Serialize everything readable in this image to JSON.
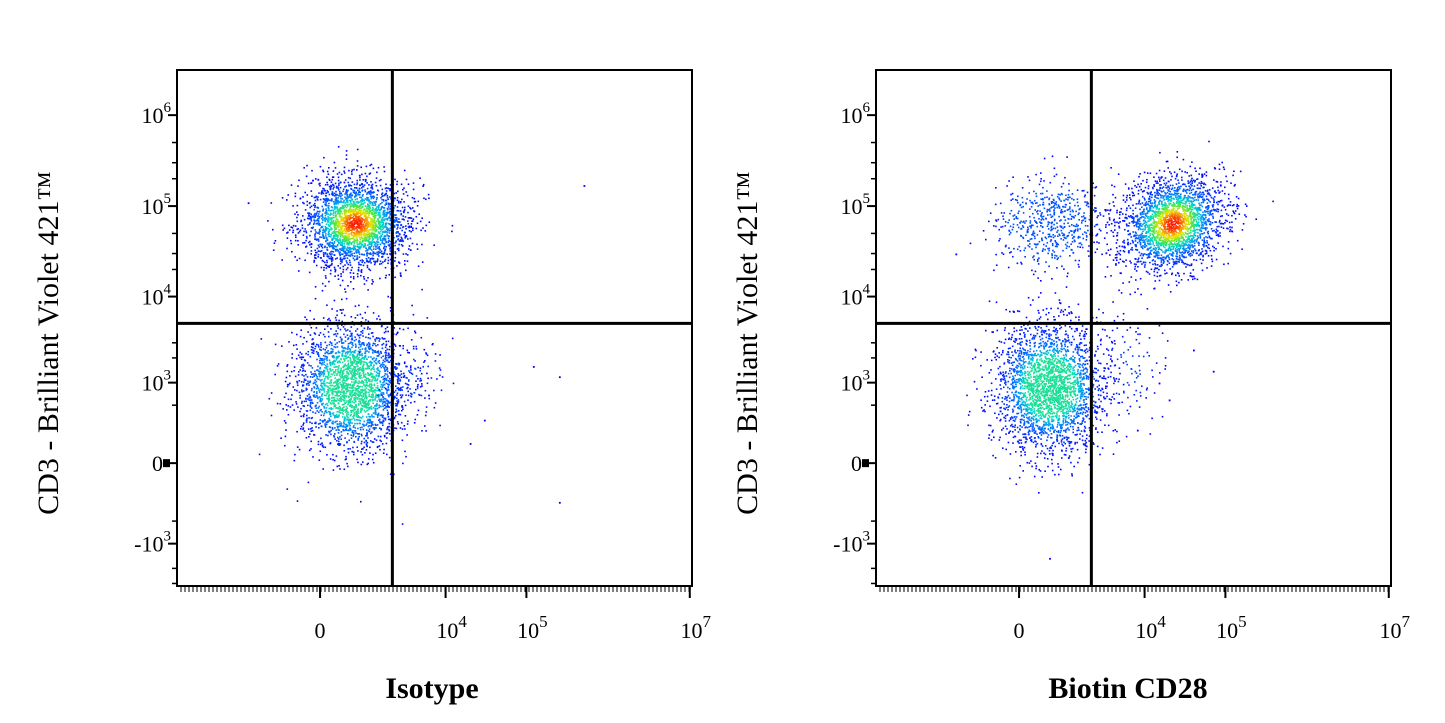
{
  "chart_data": [
    {
      "type": "scatter",
      "style": "flow cytometry density plot with quadrant gates",
      "xlabel": "Isotype",
      "ylabel": "CD3 - Brilliant Violet 421™",
      "x_scale": "biexponential",
      "y_scale": "biexponential",
      "x_ticks": [
        {
          "value": 0,
          "base": "0",
          "exp": ""
        },
        {
          "value": 10000,
          "base": "10",
          "exp": "4"
        },
        {
          "value": 100000,
          "base": "10",
          "exp": "5"
        },
        {
          "value": 10000000,
          "base": "10",
          "exp": "7"
        }
      ],
      "y_ticks": [
        {
          "value": 1000000,
          "base": "10",
          "exp": "6"
        },
        {
          "value": 100000,
          "base": "10",
          "exp": "5"
        },
        {
          "value": 10000,
          "base": "10",
          "exp": "4"
        },
        {
          "value": 1000,
          "base": "10",
          "exp": "3"
        },
        {
          "value": 0,
          "base": "0",
          "exp": ""
        },
        {
          "value": -1000,
          "base": "-10",
          "exp": "3"
        }
      ],
      "gates": {
        "x": 2000,
        "y": 5000
      },
      "populations": [
        {
          "quadrant": "upper-left",
          "x_center": 500,
          "y_center": 65000,
          "relative_size": 1.0,
          "peak_color": "red"
        },
        {
          "quadrant": "lower-left",
          "x_center": 400,
          "y_center": 900,
          "relative_size": 0.95,
          "peak_color": "cyan"
        },
        {
          "quadrant": "lower-right",
          "x_center": 3500,
          "y_center": 1200,
          "relative_size": 0.03,
          "peak_color": "blue"
        }
      ],
      "outlier_points": [
        {
          "x": 500000,
          "y": 170000
        },
        {
          "x": 120000,
          "y": 1600
        },
        {
          "x": 250000,
          "y": 1200
        },
        {
          "x": 250000,
          "y": -250
        },
        {
          "x": 30000,
          "y": 300
        },
        {
          "x": 20000,
          "y": 100
        },
        {
          "x": 6000,
          "y": 700
        },
        {
          "x": 3500,
          "y": 60000
        },
        {
          "x": -2000,
          "y": 110000
        }
      ]
    },
    {
      "type": "scatter",
      "style": "flow cytometry density plot with quadrant gates",
      "xlabel": "Biotin CD28",
      "ylabel": "CD3 - Brilliant Violet 421™",
      "x_scale": "biexponential",
      "y_scale": "biexponential",
      "x_ticks": [
        {
          "value": 0,
          "base": "0",
          "exp": ""
        },
        {
          "value": 10000,
          "base": "10",
          "exp": "4"
        },
        {
          "value": 100000,
          "base": "10",
          "exp": "5"
        },
        {
          "value": 10000000,
          "base": "10",
          "exp": "7"
        }
      ],
      "y_ticks": [
        {
          "value": 1000000,
          "base": "10",
          "exp": "6"
        },
        {
          "value": 100000,
          "base": "10",
          "exp": "5"
        },
        {
          "value": 10000,
          "base": "10",
          "exp": "4"
        },
        {
          "value": 1000,
          "base": "10",
          "exp": "3"
        },
        {
          "value": 0,
          "base": "0",
          "exp": ""
        },
        {
          "value": -1000,
          "base": "-10",
          "exp": "3"
        }
      ],
      "gates": {
        "x": 2000,
        "y": 5000
      },
      "populations": [
        {
          "quadrant": "upper-right",
          "x_center": 22000,
          "y_center": 65000,
          "relative_size": 0.9,
          "peak_color": "red"
        },
        {
          "quadrant": "upper-left",
          "x_center": 400,
          "y_center": 65000,
          "relative_size": 0.22,
          "peak_color": "blue"
        },
        {
          "quadrant": "lower-left",
          "x_center": 400,
          "y_center": 900,
          "relative_size": 1.0,
          "peak_color": "cyan"
        },
        {
          "quadrant": "lower-right",
          "x_center": 6000,
          "y_center": 1500,
          "relative_size": 0.03,
          "peak_color": "blue"
        }
      ],
      "outlier_points": [
        {
          "x": 70000,
          "y": 1400
        },
        {
          "x": 40000,
          "y": 2500
        },
        {
          "x": 15000,
          "y": 1000
        },
        {
          "x": 8000,
          "y": 200
        },
        {
          "x": 20000,
          "y": 600
        },
        {
          "x": -1500,
          "y": 30000
        },
        {
          "x": 400,
          "y": -1500
        }
      ]
    }
  ]
}
